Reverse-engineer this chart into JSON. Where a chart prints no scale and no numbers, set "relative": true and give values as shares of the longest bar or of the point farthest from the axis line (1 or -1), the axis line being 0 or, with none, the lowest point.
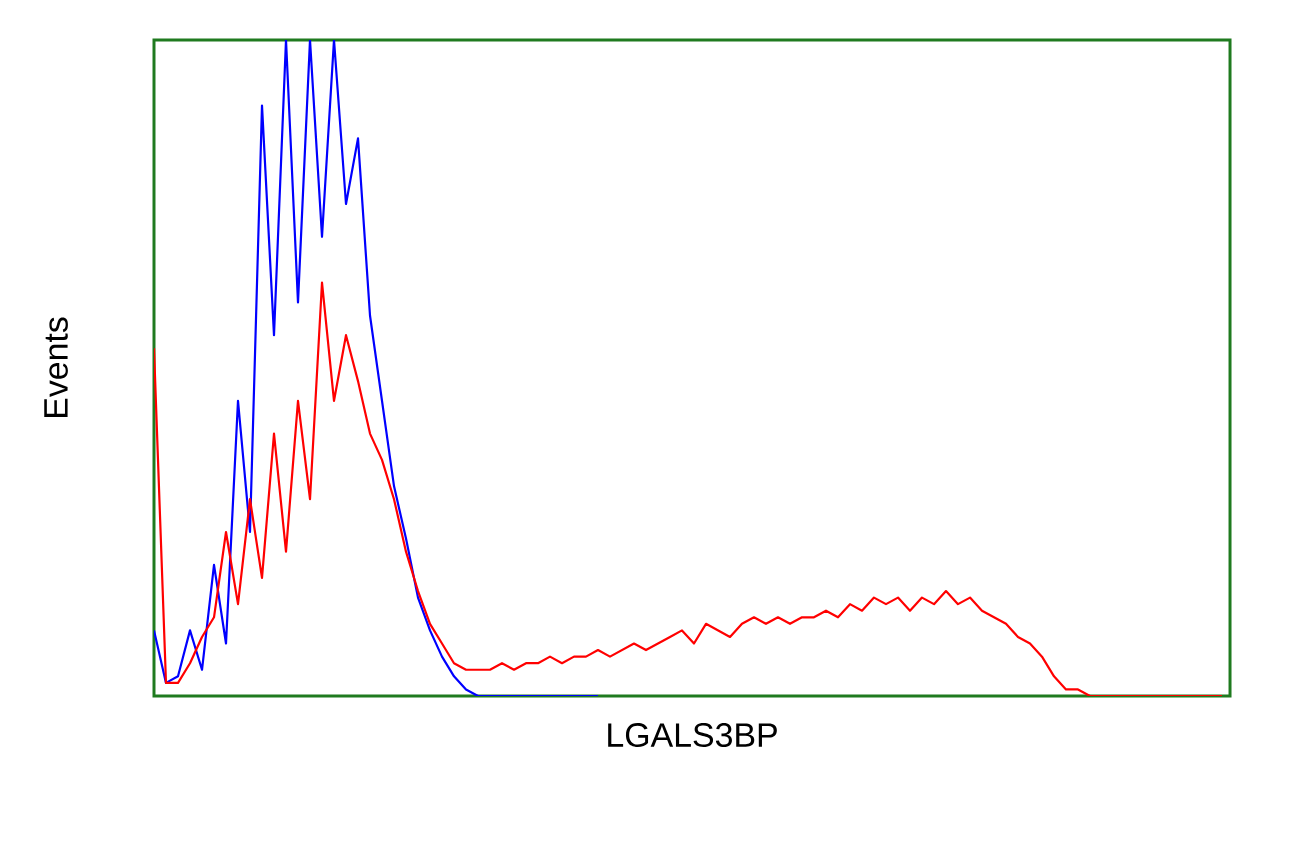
{
  "chart_data": {
    "type": "line",
    "xlabel": "LGALS3BP",
    "ylabel": "Events",
    "relative": true,
    "marker": "none",
    "line_style": "solid",
    "categories": [
      null,
      null,
      null,
      null,
      null,
      null,
      null,
      null,
      null,
      null,
      null,
      null,
      null,
      null,
      null,
      null,
      null,
      null,
      null,
      null,
      null,
      null,
      null,
      null,
      null,
      null,
      null,
      null,
      null,
      null,
      null,
      null,
      null,
      null,
      null,
      null,
      null,
      null,
      null,
      null,
      null,
      null,
      null,
      null,
      null,
      null,
      null,
      null,
      null,
      null,
      null,
      null,
      null,
      null,
      null,
      null,
      null,
      null,
      null,
      null,
      null,
      null,
      null,
      null,
      null,
      null,
      null,
      null,
      null,
      null,
      null,
      null,
      null,
      null,
      null,
      null,
      null,
      null,
      null,
      null,
      null,
      null,
      null,
      null,
      null,
      null,
      null,
      null,
      null,
      null
    ],
    "series": [
      {
        "color": "#0000ff",
        "values": [
          0.1,
          0.02,
          0.03,
          0.1,
          0.04,
          0.2,
          0.08,
          0.45,
          0.25,
          0.9,
          0.55,
          1.0,
          0.6,
          1.0,
          0.7,
          1.0,
          0.75,
          0.85,
          0.58,
          0.45,
          0.32,
          0.24,
          0.15,
          0.1,
          0.06,
          0.03,
          0.01,
          0,
          0,
          0,
          0,
          0,
          0,
          0,
          0,
          0,
          0,
          0,
          null,
          null,
          null,
          null,
          null,
          null,
          null,
          null,
          null,
          null,
          null,
          null,
          null,
          null,
          null,
          null,
          null,
          null,
          null,
          null,
          null,
          null,
          null,
          null,
          null,
          null,
          null,
          null,
          null,
          null,
          null,
          null,
          null,
          null,
          null,
          null,
          null,
          null,
          null,
          null,
          null,
          null,
          null,
          null,
          null,
          null,
          null,
          null,
          null,
          null,
          null,
          null
        ]
      },
      {
        "color": "#ff0000",
        "values": [
          0.53,
          0.02,
          0.02,
          0.05,
          0.09,
          0.12,
          0.25,
          0.14,
          0.3,
          0.18,
          0.4,
          0.22,
          0.45,
          0.3,
          0.63,
          0.45,
          0.55,
          0.48,
          0.4,
          0.36,
          0.3,
          0.22,
          0.16,
          0.11,
          0.08,
          0.05,
          0.04,
          0.04,
          0.04,
          0.05,
          0.04,
          0.05,
          0.05,
          0.06,
          0.05,
          0.06,
          0.06,
          0.07,
          0.06,
          0.07,
          0.08,
          0.07,
          0.08,
          0.09,
          0.1,
          0.08,
          0.11,
          0.1,
          0.09,
          0.11,
          0.12,
          0.11,
          0.12,
          0.11,
          0.12,
          0.12,
          0.13,
          0.12,
          0.14,
          0.13,
          0.15,
          0.14,
          0.15,
          0.13,
          0.15,
          0.14,
          0.16,
          0.14,
          0.15,
          0.13,
          0.12,
          0.11,
          0.09,
          0.08,
          0.06,
          0.03,
          0.01,
          0.01,
          0,
          0,
          0,
          0,
          0,
          0,
          0,
          0,
          0,
          0,
          0,
          0
        ]
      }
    ]
  }
}
